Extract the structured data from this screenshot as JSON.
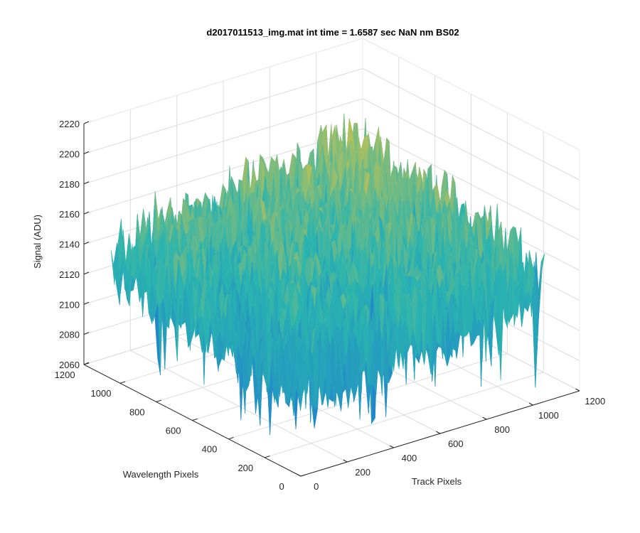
{
  "chart_data": {
    "type": "surface",
    "title": "d2017011513_img.mat int time = 1.6587 sec  NaN nm BS02",
    "xlabel": "Track Pixels",
    "ylabel": "Wavelength Pixels",
    "zlabel": "Signal (ADU)",
    "xlim": [
      0,
      1200
    ],
    "ylim": [
      0,
      1200
    ],
    "zlim": [
      2060,
      2220
    ],
    "x_ticks": [
      0,
      200,
      400,
      600,
      800,
      1000,
      1200
    ],
    "y_ticks": [
      0,
      200,
      400,
      600,
      800,
      1000,
      1200
    ],
    "z_ticks": [
      2060,
      2080,
      2100,
      2120,
      2140,
      2160,
      2180,
      2200,
      2220
    ],
    "data_extent": {
      "x": [
        0,
        1050
      ],
      "y": [
        0,
        1050
      ]
    },
    "surface_summary": {
      "mean_signal": 2140,
      "noise_amplitude": 12,
      "min_signal_approx": 2070,
      "max_signal_approx": 2205,
      "trend": "signal rises toward the far corner (high track, high wavelength)"
    },
    "grid": true,
    "colormap": {
      "low": "#1f77d4",
      "mid": "#2ab4b0",
      "high": "#e8c53a"
    }
  }
}
